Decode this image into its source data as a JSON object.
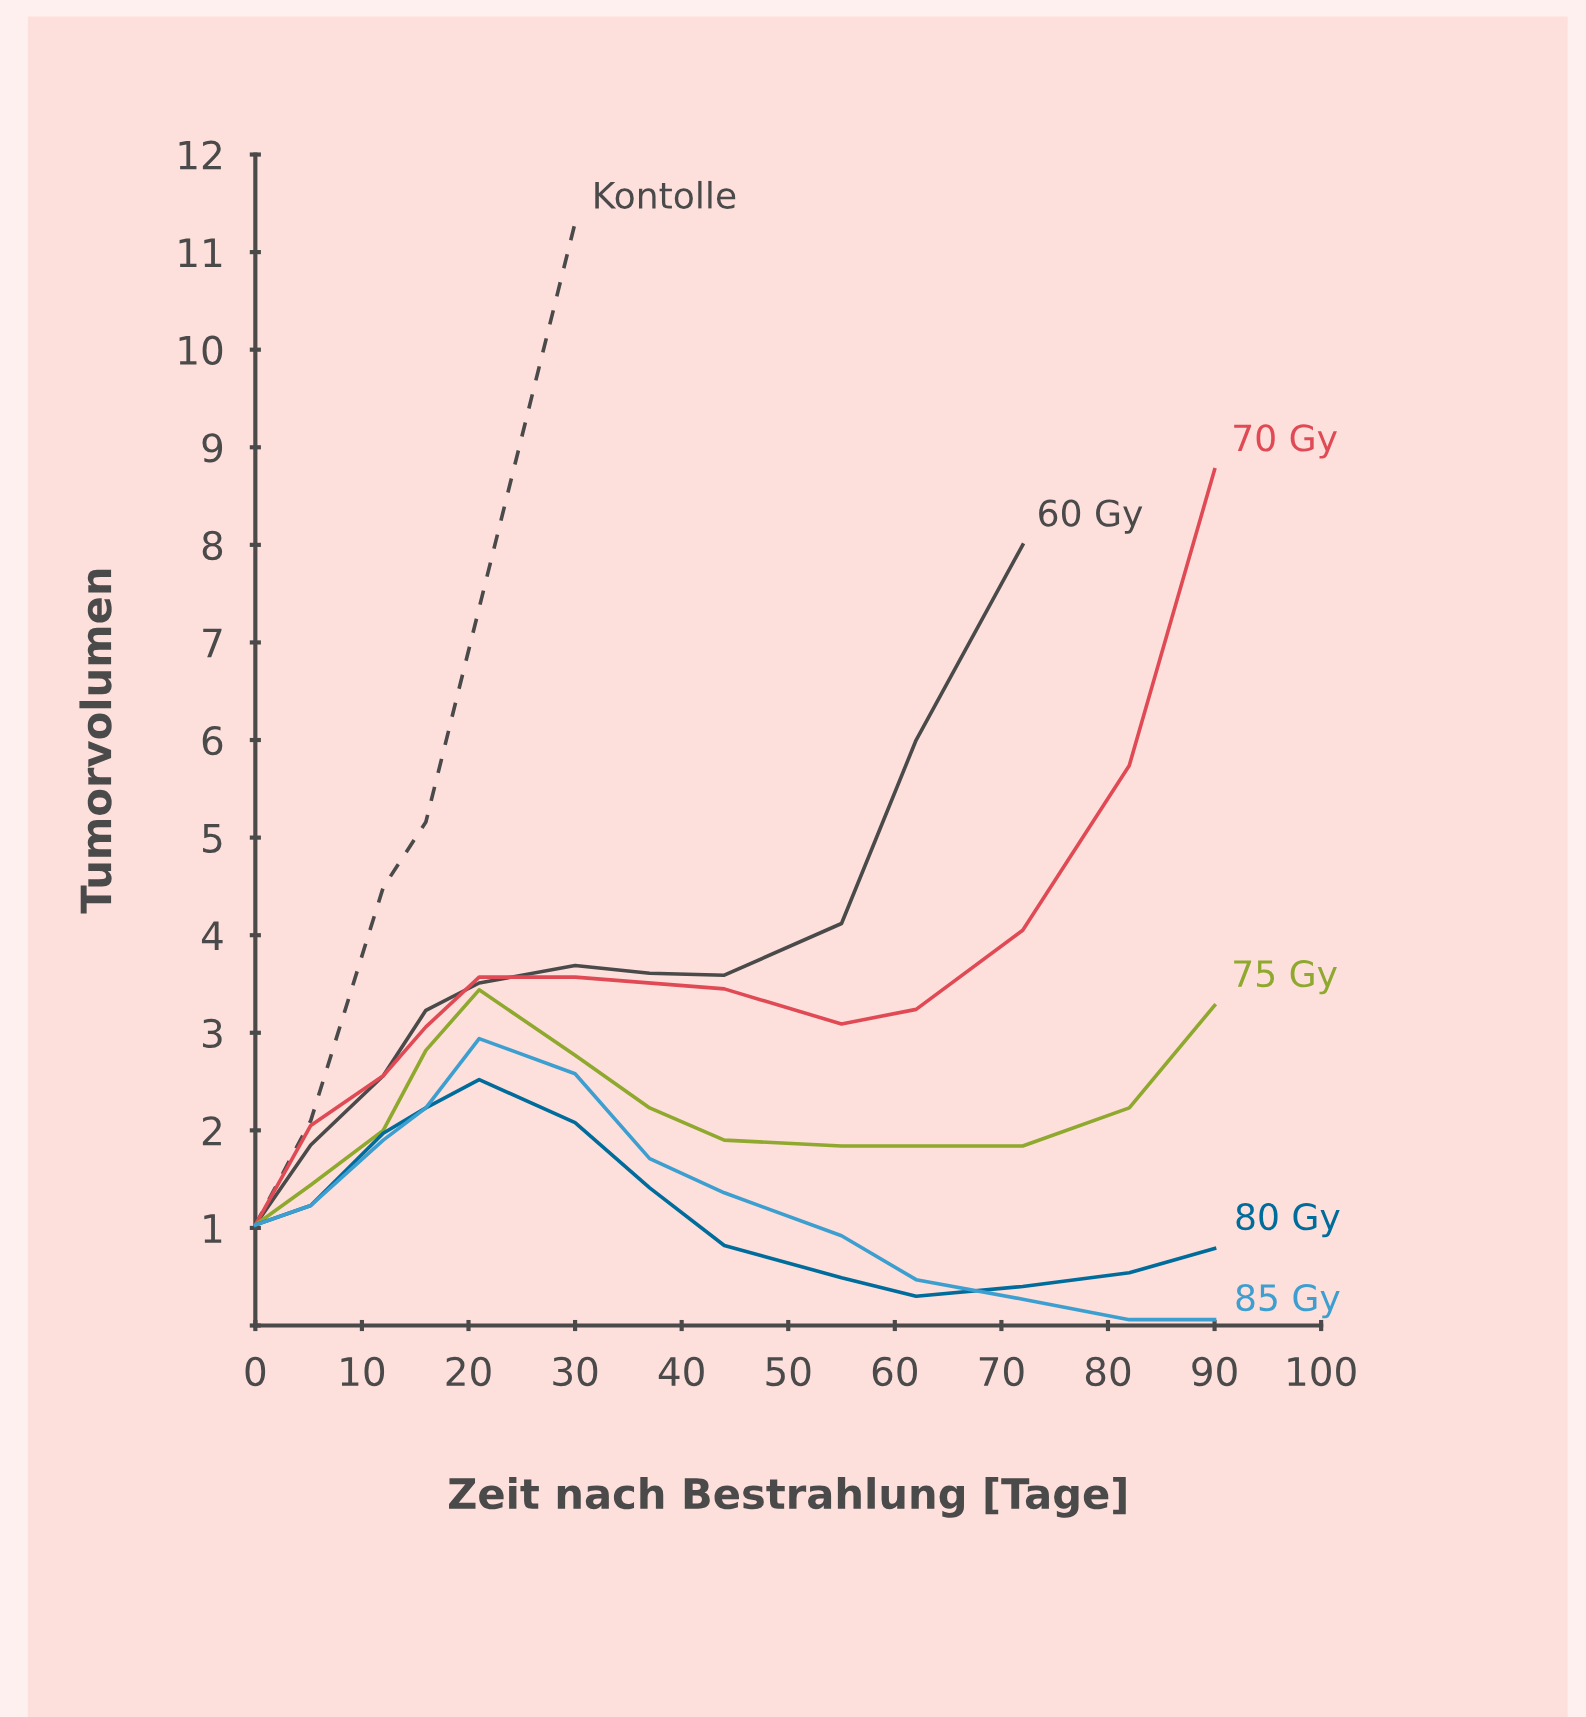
{
  "chart_data": {
    "type": "line",
    "xlabel": "Zeit nach Bestrahlung [Tage]",
    "ylabel": "Tumorvolumen",
    "xlim": [
      0,
      100
    ],
    "xticks": [
      0,
      10,
      20,
      30,
      40,
      50,
      60,
      70,
      80,
      90,
      100
    ],
    "ylim": [
      0,
      12
    ],
    "yticks": [
      {
        "value": 0,
        "label": null
      },
      1,
      2,
      3,
      4,
      5,
      6,
      7,
      8,
      9,
      10,
      11,
      12
    ],
    "grid": false,
    "legend": false,
    "marker": "none",
    "series": [
      {
        "name": "Kontolle",
        "color": "#4a4a4a",
        "line_style": "dashed",
        "x": [
          0,
          5.2,
          12,
          16,
          30
        ],
        "values": [
          1.03,
          2.1,
          4.49,
          5.16,
          11.3
        ]
      },
      {
        "name": "60 Gy",
        "color": "#4a4a4a",
        "x": [
          0,
          5.2,
          12,
          16,
          21,
          30,
          37,
          44,
          55,
          62,
          72
        ],
        "values": [
          1.03,
          1.85,
          2.56,
          3.23,
          3.51,
          3.69,
          3.61,
          3.59,
          4.12,
          6.0,
          8.0
        ]
      },
      {
        "name": "70 Gy",
        "color": "#e04a55",
        "x": [
          0,
          5.2,
          12,
          16,
          21,
          30,
          44,
          55,
          62,
          72,
          82,
          90
        ],
        "values": [
          1.03,
          2.05,
          2.56,
          3.06,
          3.57,
          3.57,
          3.45,
          3.09,
          3.24,
          4.05,
          5.74,
          8.77
        ]
      },
      {
        "name": "75 Gy",
        "color": "#8fa82e",
        "x": [
          0,
          5.2,
          12,
          16,
          21,
          30,
          37,
          44,
          55,
          62,
          72,
          82,
          90
        ],
        "values": [
          1.03,
          1.44,
          2.0,
          2.82,
          3.44,
          2.77,
          2.23,
          1.9,
          1.84,
          1.84,
          1.84,
          2.23,
          3.28
        ]
      },
      {
        "name": "80 Gy",
        "color": "#006c9c",
        "x": [
          0,
          5.2,
          12,
          16,
          21,
          30,
          37,
          44,
          55,
          62,
          72,
          82,
          90
        ],
        "values": [
          1.03,
          1.23,
          1.97,
          2.23,
          2.52,
          2.08,
          1.41,
          0.82,
          0.49,
          0.3,
          0.4,
          0.54,
          0.79
        ]
      },
      {
        "name": "85 Gy",
        "color": "#3d9fd0",
        "x": [
          0,
          5.2,
          12,
          16,
          21,
          30,
          37,
          44,
          55,
          62,
          72,
          82,
          90
        ],
        "values": [
          1.03,
          1.23,
          1.9,
          2.23,
          2.94,
          2.58,
          1.71,
          1.36,
          0.92,
          0.47,
          0.27,
          0.06,
          0.06
        ]
      }
    ]
  }
}
